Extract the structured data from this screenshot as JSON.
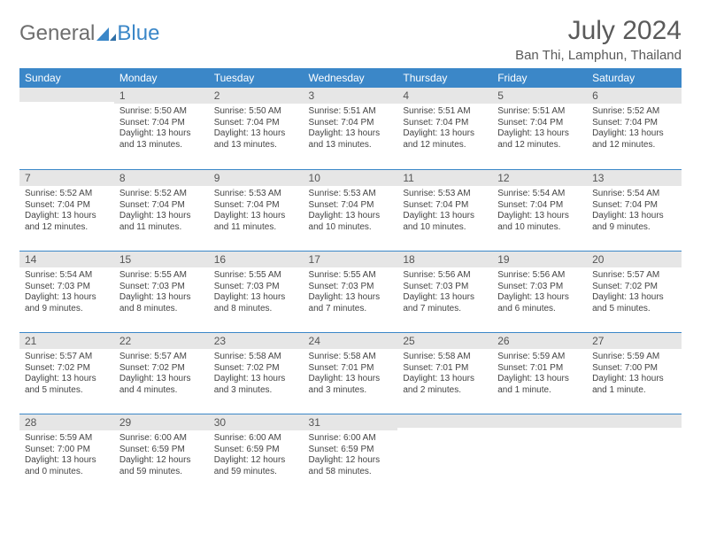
{
  "brand": {
    "word1": "General",
    "word2": "Blue"
  },
  "title": "July 2024",
  "location": "Ban Thi, Lamphun, Thailand",
  "colors": {
    "header_bg": "#3b87c8",
    "header_text": "#ffffff",
    "daynum_bg": "#e6e6e6",
    "row_border": "#3b87c8",
    "text": "#444444",
    "page_bg": "#ffffff",
    "title_color": "#5a5a5a"
  },
  "weekdays": [
    "Sunday",
    "Monday",
    "Tuesday",
    "Wednesday",
    "Thursday",
    "Friday",
    "Saturday"
  ],
  "weeks": [
    [
      {
        "n": "",
        "sunrise": "",
        "sunset": "",
        "daylight": ""
      },
      {
        "n": "1",
        "sunrise": "Sunrise: 5:50 AM",
        "sunset": "Sunset: 7:04 PM",
        "daylight": "Daylight: 13 hours and 13 minutes."
      },
      {
        "n": "2",
        "sunrise": "Sunrise: 5:50 AM",
        "sunset": "Sunset: 7:04 PM",
        "daylight": "Daylight: 13 hours and 13 minutes."
      },
      {
        "n": "3",
        "sunrise": "Sunrise: 5:51 AM",
        "sunset": "Sunset: 7:04 PM",
        "daylight": "Daylight: 13 hours and 13 minutes."
      },
      {
        "n": "4",
        "sunrise": "Sunrise: 5:51 AM",
        "sunset": "Sunset: 7:04 PM",
        "daylight": "Daylight: 13 hours and 12 minutes."
      },
      {
        "n": "5",
        "sunrise": "Sunrise: 5:51 AM",
        "sunset": "Sunset: 7:04 PM",
        "daylight": "Daylight: 13 hours and 12 minutes."
      },
      {
        "n": "6",
        "sunrise": "Sunrise: 5:52 AM",
        "sunset": "Sunset: 7:04 PM",
        "daylight": "Daylight: 13 hours and 12 minutes."
      }
    ],
    [
      {
        "n": "7",
        "sunrise": "Sunrise: 5:52 AM",
        "sunset": "Sunset: 7:04 PM",
        "daylight": "Daylight: 13 hours and 12 minutes."
      },
      {
        "n": "8",
        "sunrise": "Sunrise: 5:52 AM",
        "sunset": "Sunset: 7:04 PM",
        "daylight": "Daylight: 13 hours and 11 minutes."
      },
      {
        "n": "9",
        "sunrise": "Sunrise: 5:53 AM",
        "sunset": "Sunset: 7:04 PM",
        "daylight": "Daylight: 13 hours and 11 minutes."
      },
      {
        "n": "10",
        "sunrise": "Sunrise: 5:53 AM",
        "sunset": "Sunset: 7:04 PM",
        "daylight": "Daylight: 13 hours and 10 minutes."
      },
      {
        "n": "11",
        "sunrise": "Sunrise: 5:53 AM",
        "sunset": "Sunset: 7:04 PM",
        "daylight": "Daylight: 13 hours and 10 minutes."
      },
      {
        "n": "12",
        "sunrise": "Sunrise: 5:54 AM",
        "sunset": "Sunset: 7:04 PM",
        "daylight": "Daylight: 13 hours and 10 minutes."
      },
      {
        "n": "13",
        "sunrise": "Sunrise: 5:54 AM",
        "sunset": "Sunset: 7:04 PM",
        "daylight": "Daylight: 13 hours and 9 minutes."
      }
    ],
    [
      {
        "n": "14",
        "sunrise": "Sunrise: 5:54 AM",
        "sunset": "Sunset: 7:03 PM",
        "daylight": "Daylight: 13 hours and 9 minutes."
      },
      {
        "n": "15",
        "sunrise": "Sunrise: 5:55 AM",
        "sunset": "Sunset: 7:03 PM",
        "daylight": "Daylight: 13 hours and 8 minutes."
      },
      {
        "n": "16",
        "sunrise": "Sunrise: 5:55 AM",
        "sunset": "Sunset: 7:03 PM",
        "daylight": "Daylight: 13 hours and 8 minutes."
      },
      {
        "n": "17",
        "sunrise": "Sunrise: 5:55 AM",
        "sunset": "Sunset: 7:03 PM",
        "daylight": "Daylight: 13 hours and 7 minutes."
      },
      {
        "n": "18",
        "sunrise": "Sunrise: 5:56 AM",
        "sunset": "Sunset: 7:03 PM",
        "daylight": "Daylight: 13 hours and 7 minutes."
      },
      {
        "n": "19",
        "sunrise": "Sunrise: 5:56 AM",
        "sunset": "Sunset: 7:03 PM",
        "daylight": "Daylight: 13 hours and 6 minutes."
      },
      {
        "n": "20",
        "sunrise": "Sunrise: 5:57 AM",
        "sunset": "Sunset: 7:02 PM",
        "daylight": "Daylight: 13 hours and 5 minutes."
      }
    ],
    [
      {
        "n": "21",
        "sunrise": "Sunrise: 5:57 AM",
        "sunset": "Sunset: 7:02 PM",
        "daylight": "Daylight: 13 hours and 5 minutes."
      },
      {
        "n": "22",
        "sunrise": "Sunrise: 5:57 AM",
        "sunset": "Sunset: 7:02 PM",
        "daylight": "Daylight: 13 hours and 4 minutes."
      },
      {
        "n": "23",
        "sunrise": "Sunrise: 5:58 AM",
        "sunset": "Sunset: 7:02 PM",
        "daylight": "Daylight: 13 hours and 3 minutes."
      },
      {
        "n": "24",
        "sunrise": "Sunrise: 5:58 AM",
        "sunset": "Sunset: 7:01 PM",
        "daylight": "Daylight: 13 hours and 3 minutes."
      },
      {
        "n": "25",
        "sunrise": "Sunrise: 5:58 AM",
        "sunset": "Sunset: 7:01 PM",
        "daylight": "Daylight: 13 hours and 2 minutes."
      },
      {
        "n": "26",
        "sunrise": "Sunrise: 5:59 AM",
        "sunset": "Sunset: 7:01 PM",
        "daylight": "Daylight: 13 hours and 1 minute."
      },
      {
        "n": "27",
        "sunrise": "Sunrise: 5:59 AM",
        "sunset": "Sunset: 7:00 PM",
        "daylight": "Daylight: 13 hours and 1 minute."
      }
    ],
    [
      {
        "n": "28",
        "sunrise": "Sunrise: 5:59 AM",
        "sunset": "Sunset: 7:00 PM",
        "daylight": "Daylight: 13 hours and 0 minutes."
      },
      {
        "n": "29",
        "sunrise": "Sunrise: 6:00 AM",
        "sunset": "Sunset: 6:59 PM",
        "daylight": "Daylight: 12 hours and 59 minutes."
      },
      {
        "n": "30",
        "sunrise": "Sunrise: 6:00 AM",
        "sunset": "Sunset: 6:59 PM",
        "daylight": "Daylight: 12 hours and 59 minutes."
      },
      {
        "n": "31",
        "sunrise": "Sunrise: 6:00 AM",
        "sunset": "Sunset: 6:59 PM",
        "daylight": "Daylight: 12 hours and 58 minutes."
      },
      {
        "n": "",
        "sunrise": "",
        "sunset": "",
        "daylight": ""
      },
      {
        "n": "",
        "sunrise": "",
        "sunset": "",
        "daylight": ""
      },
      {
        "n": "",
        "sunrise": "",
        "sunset": "",
        "daylight": ""
      }
    ]
  ]
}
